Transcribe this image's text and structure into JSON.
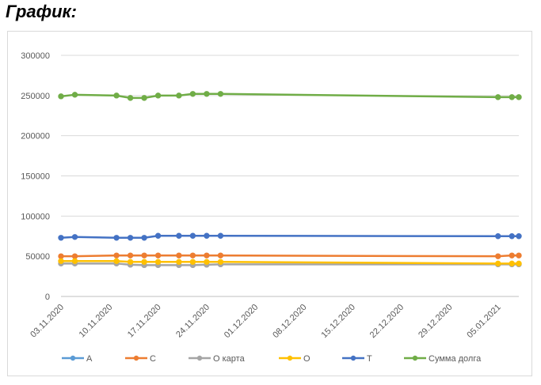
{
  "heading": "График:",
  "chart_data": {
    "type": "line",
    "title": "",
    "xlabel": "",
    "ylabel": "",
    "ylim": [
      0,
      300000
    ],
    "yticks": [
      "300000",
      "250000",
      "200000",
      "150000",
      "100000",
      "50000",
      "0"
    ],
    "x_range": [
      "2020-11-03",
      "2021-01-08"
    ],
    "xticks": [
      "03.11.2020",
      "10.11.2020",
      "17.11.2020",
      "24.11.2020",
      "01.12.2020",
      "08.12.2020",
      "15.12.2020",
      "22.12.2020",
      "29.12.2020",
      "05.01.2021"
    ],
    "grid": true,
    "legend": "bottom",
    "x": [
      "2020-11-03",
      "2020-11-05",
      "2020-11-11",
      "2020-11-13",
      "2020-11-15",
      "2020-11-17",
      "2020-11-20",
      "2020-11-22",
      "2020-11-24",
      "2020-11-26",
      "2021-01-05",
      "2021-01-07",
      "2021-01-08"
    ],
    "series": [
      {
        "name": "А",
        "color": "#5b9bd5",
        "values": [
          null,
          null,
          null,
          null,
          null,
          null,
          null,
          null,
          null,
          null,
          null,
          null,
          null
        ]
      },
      {
        "name": "С",
        "color": "#ed7d31",
        "values": [
          50000,
          50000,
          51000,
          51000,
          51000,
          51000,
          51000,
          51000,
          51000,
          51000,
          50000,
          51000,
          51000
        ]
      },
      {
        "name": "О карта",
        "color": "#a5a5a5",
        "values": [
          41000,
          41000,
          41000,
          39500,
          39000,
          39000,
          39000,
          39000,
          39500,
          40000,
          40000,
          40000,
          40000
        ]
      },
      {
        "name": "О",
        "color": "#ffc000",
        "values": [
          44000,
          44000,
          44000,
          43000,
          43000,
          43000,
          43000,
          43000,
          43000,
          43000,
          41000,
          41000,
          41000
        ]
      },
      {
        "name": "Т",
        "color": "#4472c4",
        "values": [
          73000,
          74000,
          73000,
          73000,
          73000,
          75500,
          75500,
          75500,
          75500,
          75500,
          75000,
          75000,
          75000
        ]
      },
      {
        "name": "Сумма долга",
        "color": "#70ad47",
        "values": [
          249000,
          251000,
          250000,
          247000,
          247000,
          250000,
          250000,
          252000,
          252000,
          252000,
          248000,
          248000,
          248000
        ]
      }
    ]
  }
}
